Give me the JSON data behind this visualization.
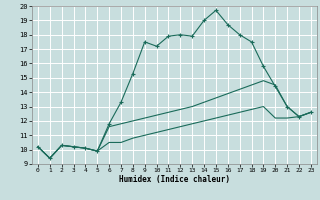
{
  "xlabel": "Humidex (Indice chaleur)",
  "bg_color": "#c8dede",
  "grid_color": "#ffffff",
  "line_color": "#1a6b5a",
  "xlim": [
    -0.5,
    23.5
  ],
  "ylim": [
    9,
    20
  ],
  "xticks": [
    0,
    1,
    2,
    3,
    4,
    5,
    6,
    7,
    8,
    9,
    10,
    11,
    12,
    13,
    14,
    15,
    16,
    17,
    18,
    19,
    20,
    21,
    22,
    23
  ],
  "yticks": [
    9,
    10,
    11,
    12,
    13,
    14,
    15,
    16,
    17,
    18,
    19,
    20
  ],
  "line1_x": [
    0,
    1,
    2,
    3,
    4,
    5,
    6,
    7,
    8,
    9,
    10,
    11,
    12,
    13,
    14,
    15,
    16,
    17,
    18,
    19,
    20,
    21,
    22,
    23
  ],
  "line1_y": [
    10.2,
    9.4,
    10.3,
    10.2,
    10.1,
    9.9,
    11.8,
    13.3,
    15.3,
    17.5,
    17.2,
    17.9,
    18.0,
    17.9,
    19.0,
    19.7,
    18.7,
    18.0,
    17.5,
    15.8,
    14.4,
    13.0,
    12.3,
    12.6
  ],
  "line2_x": [
    0,
    1,
    2,
    3,
    4,
    5,
    6,
    7,
    8,
    9,
    10,
    11,
    12,
    13,
    14,
    15,
    16,
    17,
    18,
    19,
    20,
    21,
    22,
    23
  ],
  "line2_y": [
    10.2,
    9.4,
    10.3,
    10.2,
    10.1,
    9.9,
    11.6,
    11.8,
    12.0,
    12.2,
    12.4,
    12.6,
    12.8,
    13.0,
    13.3,
    13.6,
    13.9,
    14.2,
    14.5,
    14.8,
    14.5,
    13.0,
    12.3,
    12.6
  ],
  "line3_x": [
    0,
    1,
    2,
    3,
    4,
    5,
    6,
    7,
    8,
    9,
    10,
    11,
    12,
    13,
    14,
    15,
    16,
    17,
    18,
    19,
    20,
    21,
    22,
    23
  ],
  "line3_y": [
    10.2,
    9.4,
    10.3,
    10.2,
    10.1,
    9.9,
    10.5,
    10.5,
    10.8,
    11.0,
    11.2,
    11.4,
    11.6,
    11.8,
    12.0,
    12.2,
    12.4,
    12.6,
    12.8,
    13.0,
    12.2,
    12.2,
    12.3,
    12.6
  ]
}
